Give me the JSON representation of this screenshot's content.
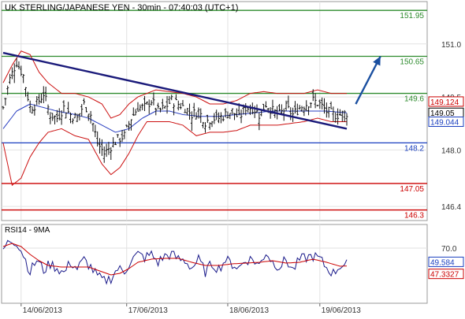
{
  "chart_data": [
    {
      "type": "candlestick",
      "title": "UK STERLING/JAPANESE YEN - 30min - 07:40:03 (UTC+1)",
      "ylim": [
        146.0,
        152.2
      ],
      "y_ticks": [
        {
          "value": 151.0,
          "label": "151.0"
        },
        {
          "value": 149.5,
          "label": "149.5"
        },
        {
          "value": 148.0,
          "label": "148.0"
        },
        {
          "value": 146.4,
          "label": "146.4"
        }
      ],
      "x_ticks": [
        {
          "index": 8,
          "label": "14/06/2013"
        },
        {
          "index": 55,
          "label": "17/06/2013"
        },
        {
          "index": 100,
          "label": "18/06/2013"
        },
        {
          "index": 141,
          "label": "19/06/2013"
        }
      ],
      "levels": [
        {
          "value": 151.95,
          "label": "151.95",
          "color": "#2e8b2e"
        },
        {
          "value": 150.65,
          "label": "150.65",
          "color": "#2e8b2e"
        },
        {
          "value": 149.6,
          "label": "149.6",
          "color": "#2e8b2e"
        },
        {
          "value": 148.2,
          "label": "148.2",
          "color": "#1a3fbf"
        },
        {
          "value": 147.05,
          "label": "147.05",
          "color": "#cc0000"
        },
        {
          "value": 146.3,
          "label": "146.3",
          "color": "#cc0000"
        }
      ],
      "price_tags": [
        {
          "value": 149.124,
          "label": "149.124",
          "color": "#cc0000"
        },
        {
          "value": 149.05,
          "label": "149.05",
          "color": "#000000"
        },
        {
          "value": 149.044,
          "label": "149.044",
          "color": "#1a3fbf"
        }
      ],
      "trendline": {
        "from": {
          "index": 0,
          "value": 150.75
        },
        "to": {
          "index": 153,
          "value": 148.6
        },
        "color": "#1a1a7a"
      },
      "forecast_arrow": {
        "from": {
          "index": 157,
          "value": 149.3
        },
        "to": {
          "index": 168,
          "value": 150.65
        },
        "color": "#1a4fa0"
      },
      "close_profile": [
        [
          0,
          149.2
        ],
        [
          3,
          150.0
        ],
        [
          6,
          150.5
        ],
        [
          9,
          150.1
        ],
        [
          12,
          149.2
        ],
        [
          15,
          149.3
        ],
        [
          18,
          149.6
        ],
        [
          21,
          149.0
        ],
        [
          24,
          148.9
        ],
        [
          27,
          149.2
        ],
        [
          30,
          149.0
        ],
        [
          33,
          148.9
        ],
        [
          36,
          149.3
        ],
        [
          39,
          149.0
        ],
        [
          42,
          148.2
        ],
        [
          45,
          147.9
        ],
        [
          48,
          148.1
        ],
        [
          51,
          148.3
        ],
        [
          54,
          148.4
        ],
        [
          57,
          148.9
        ],
        [
          60,
          149.2
        ],
        [
          63,
          149.2
        ],
        [
          66,
          149.4
        ],
        [
          69,
          149.1
        ],
        [
          72,
          149.2
        ],
        [
          75,
          149.4
        ],
        [
          78,
          149.3
        ],
        [
          81,
          149.2
        ],
        [
          84,
          149.0
        ],
        [
          87,
          149.1
        ],
        [
          90,
          148.8
        ],
        [
          93,
          148.9
        ],
        [
          96,
          148.9
        ],
        [
          99,
          149.0
        ],
        [
          102,
          149.1
        ],
        [
          105,
          148.9
        ],
        [
          108,
          149.2
        ],
        [
          111,
          149.2
        ],
        [
          114,
          149.0
        ],
        [
          117,
          149.3
        ],
        [
          120,
          149.1
        ],
        [
          123,
          149.0
        ],
        [
          126,
          149.2
        ],
        [
          129,
          149.0
        ],
        [
          132,
          149.2
        ],
        [
          135,
          149.3
        ],
        [
          138,
          149.4
        ],
        [
          141,
          149.3
        ],
        [
          144,
          149.1
        ],
        [
          147,
          149.0
        ],
        [
          150,
          149.0
        ],
        [
          153,
          149.05
        ]
      ],
      "bb_upper_profile": [
        [
          0,
          149.9
        ],
        [
          4,
          150.4
        ],
        [
          8,
          150.8
        ],
        [
          12,
          150.7
        ],
        [
          16,
          150.2
        ],
        [
          20,
          149.9
        ],
        [
          26,
          149.6
        ],
        [
          32,
          149.6
        ],
        [
          38,
          149.5
        ],
        [
          44,
          149.3
        ],
        [
          48,
          148.9
        ],
        [
          52,
          149.0
        ],
        [
          56,
          149.3
        ],
        [
          60,
          149.5
        ],
        [
          64,
          149.6
        ],
        [
          68,
          149.7
        ],
        [
          74,
          149.65
        ],
        [
          80,
          149.6
        ],
        [
          86,
          149.5
        ],
        [
          92,
          149.3
        ],
        [
          98,
          149.3
        ],
        [
          104,
          149.4
        ],
        [
          110,
          149.6
        ],
        [
          116,
          149.65
        ],
        [
          122,
          149.6
        ],
        [
          128,
          149.6
        ],
        [
          134,
          149.6
        ],
        [
          140,
          149.7
        ],
        [
          146,
          149.6
        ],
        [
          153,
          149.6
        ]
      ],
      "bb_lower_profile": [
        [
          0,
          148.2
        ],
        [
          4,
          147.0
        ],
        [
          8,
          147.2
        ],
        [
          12,
          147.8
        ],
        [
          16,
          148.2
        ],
        [
          20,
          148.5
        ],
        [
          26,
          148.6
        ],
        [
          32,
          148.4
        ],
        [
          38,
          148.3
        ],
        [
          44,
          147.6
        ],
        [
          48,
          147.3
        ],
        [
          52,
          147.5
        ],
        [
          56,
          147.9
        ],
        [
          60,
          148.4
        ],
        [
          64,
          148.8
        ],
        [
          68,
          148.8
        ],
        [
          74,
          148.8
        ],
        [
          80,
          148.7
        ],
        [
          86,
          148.4
        ],
        [
          92,
          148.5
        ],
        [
          98,
          148.5
        ],
        [
          104,
          148.55
        ],
        [
          110,
          148.7
        ],
        [
          116,
          148.7
        ],
        [
          122,
          148.7
        ],
        [
          128,
          148.75
        ],
        [
          134,
          148.8
        ],
        [
          140,
          148.9
        ],
        [
          146,
          148.8
        ],
        [
          153,
          148.8
        ]
      ],
      "bb_mid_profile": [
        [
          0,
          148.6
        ],
        [
          6,
          149.1
        ],
        [
          12,
          149.3
        ],
        [
          18,
          149.2
        ],
        [
          24,
          149.1
        ],
        [
          32,
          149.0
        ],
        [
          38,
          148.9
        ],
        [
          44,
          148.7
        ],
        [
          50,
          148.5
        ],
        [
          56,
          148.6
        ],
        [
          62,
          148.9
        ],
        [
          68,
          149.1
        ],
        [
          74,
          149.1
        ],
        [
          80,
          149.0
        ],
        [
          88,
          148.95
        ],
        [
          96,
          148.95
        ],
        [
          104,
          149.0
        ],
        [
          112,
          149.05
        ],
        [
          120,
          149.1
        ],
        [
          128,
          149.1
        ],
        [
          136,
          149.1
        ],
        [
          144,
          149.1
        ],
        [
          153,
          149.05
        ]
      ]
    },
    {
      "type": "line",
      "title": "RSI14 - 9MA",
      "ylim": [
        0,
        100
      ],
      "y_ticks": [
        {
          "value": 70,
          "label": "70.0"
        }
      ],
      "series": [
        {
          "name": "RSI14",
          "color": "#1a1a8a"
        },
        {
          "name": "9MA",
          "color": "#cc0000"
        }
      ],
      "price_tags": [
        {
          "value": 49.584,
          "label": "49.584",
          "color": "#1a3fbf"
        },
        {
          "value": 47.3327,
          "label": "47.3327",
          "color": "#cc0000"
        }
      ],
      "rsi_profile": [
        [
          0,
          68
        ],
        [
          3,
          80
        ],
        [
          6,
          78
        ],
        [
          9,
          62
        ],
        [
          12,
          40
        ],
        [
          15,
          55
        ],
        [
          18,
          42
        ],
        [
          21,
          50
        ],
        [
          24,
          45
        ],
        [
          27,
          38
        ],
        [
          30,
          52
        ],
        [
          33,
          44
        ],
        [
          36,
          55
        ],
        [
          39,
          46
        ],
        [
          42,
          34
        ],
        [
          45,
          28
        ],
        [
          48,
          32
        ],
        [
          51,
          44
        ],
        [
          54,
          40
        ],
        [
          57,
          55
        ],
        [
          60,
          62
        ],
        [
          63,
          58
        ],
        [
          66,
          62
        ],
        [
          69,
          52
        ],
        [
          72,
          60
        ],
        [
          75,
          62
        ],
        [
          78,
          56
        ],
        [
          81,
          54
        ],
        [
          84,
          45
        ],
        [
          87,
          55
        ],
        [
          90,
          40
        ],
        [
          93,
          50
        ],
        [
          96,
          44
        ],
        [
          99,
          55
        ],
        [
          102,
          50
        ],
        [
          105,
          45
        ],
        [
          108,
          55
        ],
        [
          111,
          56
        ],
        [
          114,
          48
        ],
        [
          117,
          65
        ],
        [
          120,
          52
        ],
        [
          123,
          47
        ],
        [
          126,
          55
        ],
        [
          129,
          42
        ],
        [
          132,
          55
        ],
        [
          135,
          58
        ],
        [
          138,
          60
        ],
        [
          141,
          56
        ],
        [
          144,
          45
        ],
        [
          147,
          38
        ],
        [
          150,
          48
        ],
        [
          153,
          49.584
        ]
      ],
      "ma_profile": [
        [
          0,
          72
        ],
        [
          4,
          76
        ],
        [
          8,
          72
        ],
        [
          12,
          62
        ],
        [
          16,
          54
        ],
        [
          20,
          48
        ],
        [
          26,
          46
        ],
        [
          32,
          46
        ],
        [
          38,
          46
        ],
        [
          44,
          40
        ],
        [
          48,
          36
        ],
        [
          52,
          38
        ],
        [
          56,
          44
        ],
        [
          60,
          52
        ],
        [
          66,
          56
        ],
        [
          72,
          57
        ],
        [
          78,
          57
        ],
        [
          84,
          52
        ],
        [
          90,
          48
        ],
        [
          96,
          48
        ],
        [
          102,
          50
        ],
        [
          108,
          51
        ],
        [
          114,
          52
        ],
        [
          120,
          54
        ],
        [
          126,
          51
        ],
        [
          132,
          52
        ],
        [
          138,
          56
        ],
        [
          144,
          52
        ],
        [
          150,
          47
        ],
        [
          153,
          47.3327
        ]
      ]
    }
  ]
}
